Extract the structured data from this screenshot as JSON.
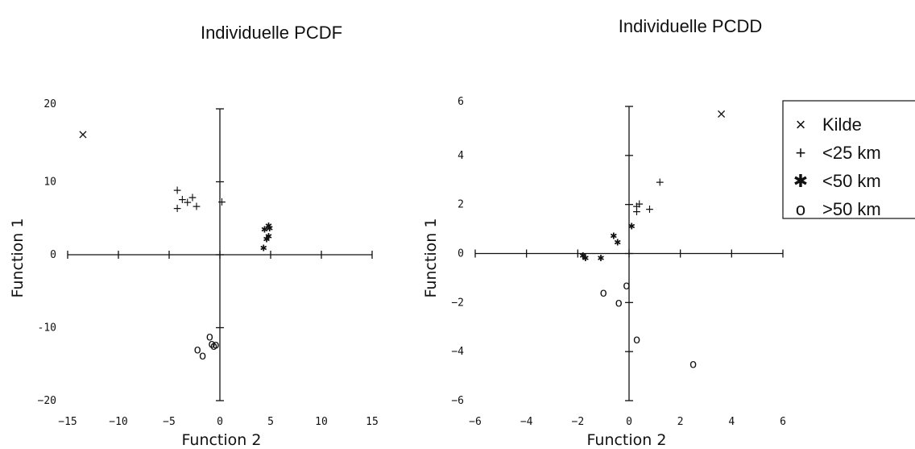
{
  "chart_data": [
    {
      "type": "scatter",
      "title": "Individuelle PCDF",
      "xlabel": "Function 2",
      "ylabel": "Function 1",
      "xlim": [
        -15,
        15
      ],
      "ylim": [
        -20,
        20
      ],
      "x_ticks": [
        -15,
        -10,
        -5,
        0,
        5,
        10,
        15
      ],
      "y_ticks": [
        -20,
        -10,
        0,
        10,
        20
      ],
      "x_tick_labels": [
        "−15",
        "−10",
        "−5",
        "0",
        "5",
        "10",
        "15"
      ],
      "y_tick_labels": [
        "−20",
        "-10",
        "0",
        "10",
        "20"
      ],
      "series": [
        {
          "name": "Kilde",
          "marker": "x",
          "points": [
            [
              -13.5,
              16.5
            ]
          ]
        },
        {
          "name": "<25 km",
          "marker": "+",
          "points": [
            [
              -4.2,
              8.8
            ],
            [
              -4.2,
              6.3
            ],
            [
              -3.7,
              7.5
            ],
            [
              -3.2,
              7.1
            ],
            [
              -2.7,
              7.8
            ],
            [
              -2.3,
              6.6
            ],
            [
              0.2,
              7.2
            ]
          ]
        },
        {
          "name": "<50 km",
          "marker": "asterisk",
          "points": [
            [
              4.4,
              3.4
            ],
            [
              4.8,
              3.9
            ],
            [
              4.9,
              3.6
            ],
            [
              4.6,
              2.1
            ],
            [
              4.8,
              2.5
            ],
            [
              4.3,
              0.9
            ]
          ]
        },
        {
          "name": ">50 km",
          "marker": "o",
          "points": [
            [
              -1.0,
              -11.2
            ],
            [
              -2.2,
              -13.0
            ],
            [
              -1.7,
              -13.8
            ],
            [
              -0.8,
              -12.2
            ],
            [
              -0.6,
              -12.5
            ],
            [
              -0.4,
              -12.3
            ]
          ]
        }
      ]
    },
    {
      "type": "scatter",
      "title": "Individuelle PCDD",
      "xlabel": "Function 2",
      "ylabel": "Function 1",
      "xlim": [
        -6,
        6
      ],
      "ylim": [
        -6,
        6
      ],
      "x_ticks": [
        -6,
        -4,
        -2,
        0,
        2,
        4,
        6
      ],
      "y_ticks": [
        -6,
        -4,
        -2,
        0,
        2,
        4,
        6
      ],
      "x_tick_labels": [
        "−6",
        "−4",
        "−2",
        "0",
        "2",
        "4",
        "6"
      ],
      "y_tick_labels": [
        "−6",
        "−4",
        "−2",
        "0",
        "2",
        "4",
        "6"
      ],
      "series": [
        {
          "name": "Kilde",
          "marker": "x",
          "points": [
            [
              3.6,
              5.7
            ]
          ]
        },
        {
          "name": "<25 km",
          "marker": "+",
          "points": [
            [
              1.2,
              2.9
            ],
            [
              0.8,
              1.8
            ],
            [
              0.4,
              2.0
            ],
            [
              0.3,
              1.9
            ],
            [
              0.3,
              1.7
            ]
          ]
        },
        {
          "name": "<50 km",
          "marker": "asterisk",
          "points": [
            [
              -1.8,
              -0.1
            ],
            [
              -1.7,
              -0.2
            ],
            [
              -1.1,
              -0.2
            ],
            [
              -0.6,
              0.7
            ],
            [
              -0.45,
              0.45
            ],
            [
              0.1,
              1.1
            ]
          ]
        },
        {
          "name": ">50 km",
          "marker": "o",
          "points": [
            [
              -1.0,
              -1.6
            ],
            [
              -0.4,
              -2.0
            ],
            [
              -0.1,
              -1.3
            ],
            [
              0.3,
              -3.5
            ],
            [
              2.5,
              -4.5
            ]
          ]
        }
      ]
    }
  ],
  "legend": {
    "placement": "top-right",
    "entries": [
      {
        "symbol": "×",
        "label": "Kilde"
      },
      {
        "symbol": "+",
        "label": "<25 km"
      },
      {
        "symbol": "✱",
        "label": "<50 km"
      },
      {
        "symbol": "o",
        "label": ">50 km"
      }
    ]
  }
}
